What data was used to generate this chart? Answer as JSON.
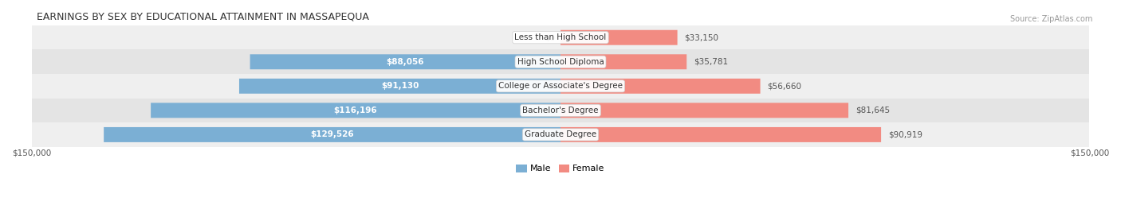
{
  "title": "EARNINGS BY SEX BY EDUCATIONAL ATTAINMENT IN MASSAPEQUA",
  "source": "Source: ZipAtlas.com",
  "categories": [
    "Less than High School",
    "High School Diploma",
    "College or Associate's Degree",
    "Bachelor's Degree",
    "Graduate Degree"
  ],
  "male_values": [
    0,
    88056,
    91130,
    116196,
    129526
  ],
  "female_values": [
    33150,
    35781,
    56660,
    81645,
    90919
  ],
  "male_color": "#7bafd4",
  "female_color": "#f28b82",
  "row_bg_colors": [
    "#efefef",
    "#e4e4e4"
  ],
  "max_value": 150000,
  "x_label_left": "$150,000",
  "x_label_right": "$150,000",
  "title_fontsize": 9,
  "source_fontsize": 7,
  "bar_label_fontsize": 7.5,
  "category_fontsize": 7.5,
  "legend_fontsize": 8,
  "axis_label_fontsize": 7.5,
  "bar_height": 0.62
}
